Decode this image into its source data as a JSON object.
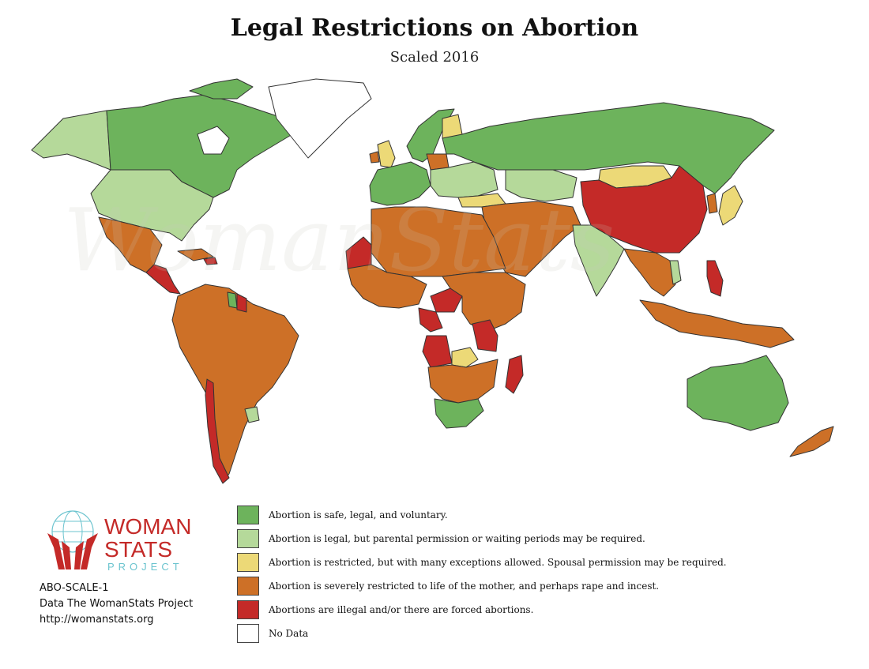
{
  "header": {
    "title": "Legal Restrictions on Abortion",
    "subtitle": "Scaled 2016"
  },
  "colors": {
    "safe_legal": "#6db35c",
    "legal_conditions": "#b5d99a",
    "restricted_exceptions": "#ecd977",
    "severely_restricted": "#cd7027",
    "illegal": "#c42a28",
    "no_data": "#ffffff",
    "border": "#333333"
  },
  "legend": {
    "items": [
      {
        "key": "safe_legal",
        "label": "Abortion is safe, legal, and voluntary."
      },
      {
        "key": "legal_conditions",
        "label": "Abortion is legal, but parental permission or waiting periods may be required."
      },
      {
        "key": "restricted_exceptions",
        "label": "Abortion is restricted, but with many exceptions allowed. Spousal permission may be required."
      },
      {
        "key": "severely_restricted",
        "label": "Abortion is severely restricted to life of the mother, and perhaps rape and incest."
      },
      {
        "key": "illegal",
        "label": "Abortions are illegal and/or there are forced abortions."
      },
      {
        "key": "no_data",
        "label": "No Data"
      }
    ]
  },
  "logo": {
    "line1": "WOMAN",
    "line2": "STATS",
    "line3": "PROJECT"
  },
  "info": {
    "code": "ABO-SCALE-1",
    "source": "Data The WomanStats Project",
    "url": "http://womanstats.org"
  },
  "regions": {
    "canada": "safe_legal",
    "usa": "legal_conditions",
    "alaska": "legal_conditions",
    "greenland": "no_data",
    "mexico": "severely_restricted",
    "central_america": "illegal",
    "caribbean": "severely_restricted",
    "south_america": "severely_restricted",
    "chile": "illegal",
    "uruguay": "legal_conditions",
    "guyana": "safe_legal",
    "suriname": "illegal",
    "western_europe": "safe_legal",
    "scandinavia": "safe_legal",
    "finland": "restricted_exceptions",
    "uk": "restricted_exceptions",
    "ireland": "severely_restricted",
    "poland": "severely_restricted",
    "eastern_europe": "legal_conditions",
    "russia": "safe_legal",
    "kazakhstan": "legal_conditions",
    "turkey": "restricted_exceptions",
    "mongolia": "restricted_exceptions",
    "china": "illegal",
    "japan": "restricted_exceptions",
    "korea": "severely_restricted",
    "india": "legal_conditions",
    "middle_east": "severely_restricted",
    "north_africa": "severely_restricted",
    "west_sahara": "illegal",
    "west_africa": "severely_restricted",
    "central_africa": "severely_restricted",
    "car": "illegal",
    "congo": "illegal",
    "angola": "illegal",
    "tanzania": "illegal",
    "zambia": "restricted_exceptions",
    "southern_africa": "severely_restricted",
    "south_africa": "safe_legal",
    "madagascar": "illegal",
    "southeast_asia": "severely_restricted",
    "philippines": "illegal",
    "vietnam": "legal_conditions",
    "indonesia": "severely_restricted",
    "australia": "safe_legal",
    "new_zealand": "severely_restricted"
  }
}
